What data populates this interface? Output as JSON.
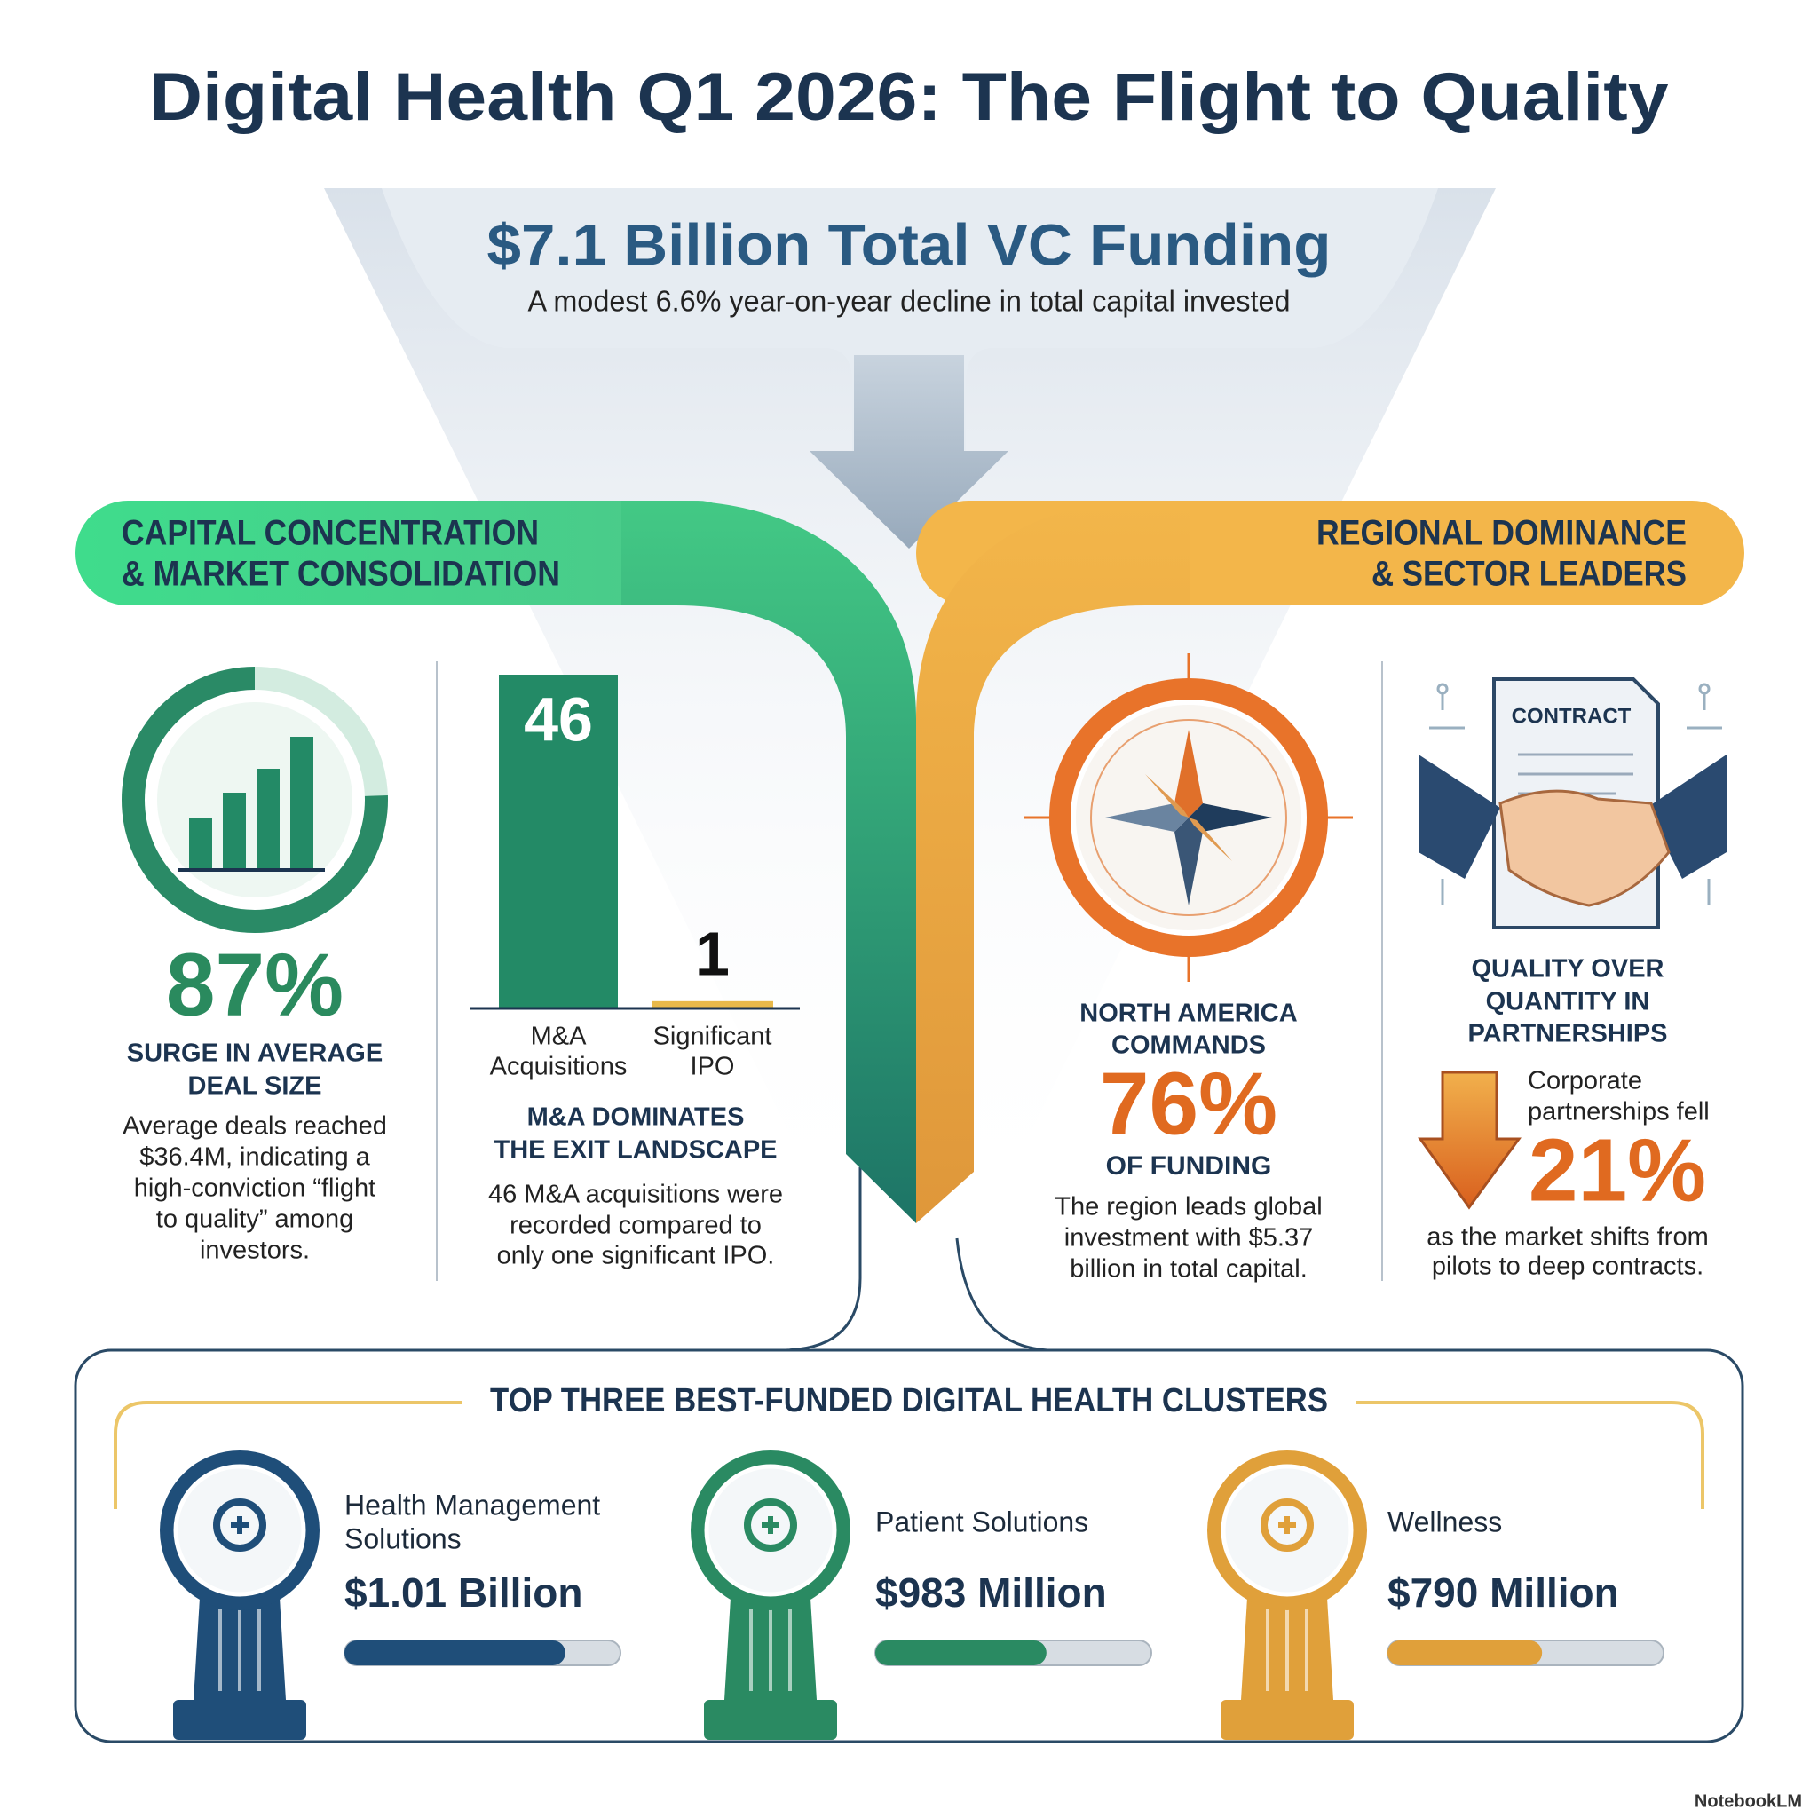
{
  "header": {
    "title": "Digital Health Q1 2026: The Flight to Quality",
    "headline": "$7.1 Billion Total VC Funding",
    "subtitle": "A modest 6.6% year-on-year decline in total capital invested"
  },
  "left_section": {
    "title_lines": [
      "CAPITAL CONCENTRATION",
      "& MARKET CONSOLIDATION"
    ]
  },
  "right_section": {
    "title_lines": [
      "REGIONAL DOMINANCE",
      "& SECTOR LEADERS"
    ]
  },
  "deal_size": {
    "stat": "87%",
    "heading": [
      "SURGE IN AVERAGE",
      "DEAL SIZE"
    ],
    "body": [
      "Average deals reached",
      "$36.4M, indicating a",
      "high-conviction “flight",
      "to quality” among",
      "investors."
    ]
  },
  "exits": {
    "type": "bar",
    "categories": [
      [
        "M&A",
        "Acquisitions"
      ],
      [
        "Significant",
        "IPO"
      ]
    ],
    "values": [
      46,
      1
    ],
    "colors": [
      "#238a66",
      "#e8b94a"
    ],
    "ylim": [
      0,
      46
    ],
    "heading": [
      "M&A DOMINATES",
      "THE EXIT LANDSCAPE"
    ],
    "body": [
      "46 M&A acquisitions were",
      "recorded compared to",
      "only one significant IPO."
    ]
  },
  "region": {
    "heading": [
      "NORTH AMERICA",
      "COMMANDS"
    ],
    "stat": "76%",
    "stat_caption": "OF FUNDING",
    "body": [
      "The region leads global",
      "investment with $5.37",
      "billion in total capital."
    ]
  },
  "partnerships": {
    "icon_label": "CONTRACT",
    "heading": [
      "QUALITY OVER",
      "QUANTITY IN",
      "PARTNERSHIPS"
    ],
    "lead": [
      "Corporate",
      "partnerships fell"
    ],
    "stat": "21%",
    "body": [
      "as the market shifts from",
      "pilots to deep contracts."
    ]
  },
  "clusters": {
    "title": "TOP THREE BEST-FUNDED DIGITAL HEALTH CLUSTERS",
    "items": [
      {
        "name": [
          "Health Management",
          "Solutions"
        ],
        "amount": "$1.01 Billion",
        "color": "#1f4e79"
      },
      {
        "name": [
          "Patient Solutions"
        ],
        "amount": "$983 Million",
        "color": "#2a8a62"
      },
      {
        "name": [
          "Wellness"
        ],
        "amount": "$790 Million",
        "color": "#e0a03a"
      }
    ]
  },
  "footer": "NotebookLM"
}
